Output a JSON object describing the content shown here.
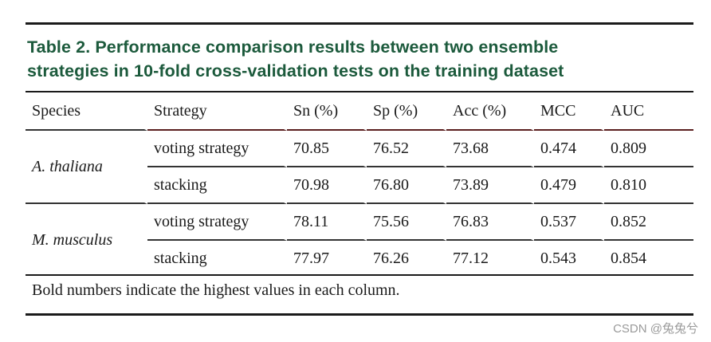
{
  "caption": {
    "line1": "Table 2. Performance comparison results between two ensemble",
    "line2": "strategies in 10-fold cross-validation tests on the training dataset"
  },
  "columns": [
    "Species",
    "Strategy",
    "Sn (%)",
    "Sp (%)",
    "Acc (%)",
    "MCC",
    "AUC"
  ],
  "rows": [
    {
      "species": "A. thaliana",
      "strategy": "voting strategy",
      "sn": "70.85",
      "sp": "76.52",
      "acc": "73.68",
      "mcc": "0.474",
      "auc": "0.809"
    },
    {
      "species": "",
      "strategy": "stacking",
      "sn": "70.98",
      "sp": "76.80",
      "acc": "73.89",
      "mcc": "0.479",
      "auc": "0.810"
    },
    {
      "species": "M. musculus",
      "strategy": "voting strategy",
      "sn": "78.11",
      "sp": "75.56",
      "acc": "76.83",
      "mcc": "0.537",
      "auc": "0.852"
    },
    {
      "species": "",
      "strategy": "stacking",
      "sn": "77.97",
      "sp": "76.26",
      "acc": "77.12",
      "mcc": "0.543",
      "auc": "0.854"
    }
  ],
  "footnote": "Bold numbers indicate the highest values in each column.",
  "watermark": "CSDN @兔兔兮",
  "colors": {
    "caption": "#1c5a3c",
    "header_rule": "#5a1e1e"
  }
}
